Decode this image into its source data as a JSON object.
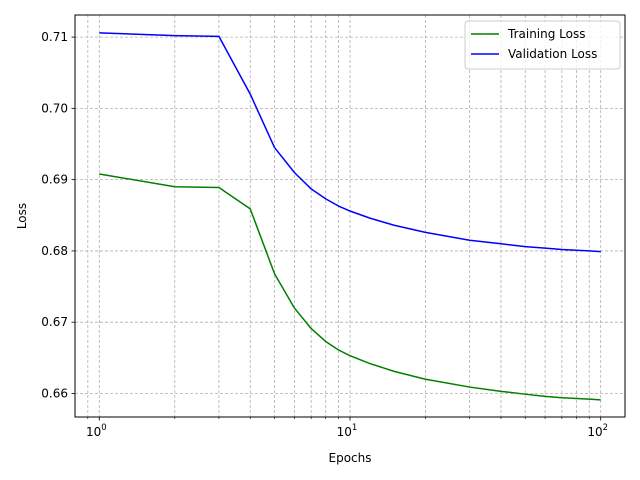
{
  "chart_data": {
    "type": "line",
    "title": "",
    "xlabel": "Epochs",
    "ylabel": "Loss",
    "x_scale": "log",
    "xlim": [
      0.8,
      125
    ],
    "ylim": [
      0.6567,
      0.7131
    ],
    "x_ticks": [
      {
        "value": 1,
        "base": "10",
        "exp": "0"
      },
      {
        "value": 10,
        "base": "10",
        "exp": "1"
      },
      {
        "value": 100,
        "base": "10",
        "exp": "2"
      }
    ],
    "y_ticks": [
      "0.66",
      "0.67",
      "0.68",
      "0.69",
      "0.70",
      "0.71"
    ],
    "grid": true,
    "grid_style": "dashed, major and minor",
    "legend_position": "top-right",
    "series": [
      {
        "name": "Training Loss",
        "color": "#008000",
        "x": [
          1,
          2,
          3,
          4,
          5,
          6,
          7,
          8,
          9,
          10,
          12,
          15,
          20,
          30,
          40,
          50,
          60,
          70,
          80,
          90,
          100
        ],
        "y": [
          0.6908,
          0.689,
          0.6889,
          0.6859,
          0.6768,
          0.672,
          0.6691,
          0.6673,
          0.6661,
          0.6653,
          0.6642,
          0.6631,
          0.662,
          0.6609,
          0.6603,
          0.6599,
          0.6596,
          0.6594,
          0.6593,
          0.6592,
          0.6591
        ]
      },
      {
        "name": "Validation Loss",
        "color": "#0000ff",
        "x": [
          1,
          2,
          3,
          4,
          5,
          6,
          7,
          8,
          9,
          10,
          12,
          15,
          20,
          30,
          40,
          50,
          60,
          70,
          80,
          90,
          100
        ],
        "y": [
          0.7106,
          0.7102,
          0.7101,
          0.702,
          0.6945,
          0.691,
          0.6887,
          0.6873,
          0.6863,
          0.6856,
          0.6846,
          0.6836,
          0.6826,
          0.6815,
          0.681,
          0.6806,
          0.6804,
          0.6802,
          0.6801,
          0.68,
          0.6799
        ]
      }
    ]
  }
}
